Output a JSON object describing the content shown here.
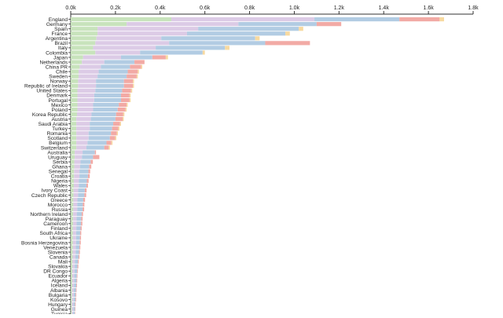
{
  "chart_data": {
    "type": "bar",
    "stacked": true,
    "orientation": "horizontal",
    "xlim": [
      0,
      1800
    ],
    "xticks": [
      0,
      200,
      400,
      600,
      800,
      1000,
      1200,
      1400,
      1600,
      1800
    ],
    "xtick_labels": [
      "0.0k",
      "0.2k",
      "0.4k",
      "0.6k",
      "0.8k",
      "1.0k",
      "1.2k",
      "1.4k",
      "1.6k",
      "1.8k"
    ],
    "grid": false,
    "legend": "none",
    "segment_colors": [
      "#c8e3bc",
      "#dccbe6",
      "#b2cce3",
      "#f2aaa5",
      "#f7d9a0"
    ],
    "categories": [
      "England",
      "Germany",
      "Spain",
      "France",
      "Argentina",
      "Brazil",
      "Italy",
      "Colombia",
      "Japan",
      "Netherlands",
      "China PR",
      "Chile",
      "Sweden",
      "Norway",
      "Republic of Ireland",
      "United States",
      "Denmark",
      "Portugal",
      "Mexico",
      "Poland",
      "Korea Republic",
      "Austria",
      "Saudi Arabia",
      "Turkey",
      "Romania",
      "Scotland",
      "Belgium",
      "Switzerland",
      "Australia",
      "Uruguay",
      "Serbia",
      "Ghana",
      "Senegal",
      "Croatia",
      "Nigeria",
      "Wales",
      "Ivory Coast",
      "Czech Republic",
      "Greece",
      "Morocco",
      "Russia",
      "Northern Ireland",
      "Paraguay",
      "Cameroon",
      "Finland",
      "South Africa",
      "Ukraine",
      "Bosnia Herzegovina",
      "Venezuela",
      "Slovenia",
      "Canada",
      "Mali",
      "Slovakia",
      "DR Congo",
      "Ecuador",
      "Algeria",
      "Iceland",
      "Albania",
      "Bulgaria",
      "Kosovo",
      "Hungary",
      "Guinea",
      "Tunisia"
    ],
    "series": [
      {
        "values": [
          450,
          250,
          120,
          120,
          115,
          110,
          100,
          110,
          55,
          50,
          40,
          35,
          35,
          33,
          33,
          30,
          30,
          30,
          30,
          30,
          28,
          25,
          25,
          25,
          25,
          25,
          25,
          25,
          18,
          18,
          16,
          16,
          15,
          15,
          14,
          14,
          13,
          13,
          12,
          12,
          12,
          11,
          11,
          11,
          10,
          10,
          10,
          10,
          10,
          9,
          9,
          8,
          8,
          7,
          7,
          7,
          7,
          6,
          6,
          6,
          5,
          5,
          5
        ]
      },
      {
        "values": [
          640,
          500,
          450,
          400,
          290,
          330,
          280,
          200,
          170,
          100,
          95,
          90,
          85,
          80,
          80,
          80,
          75,
          75,
          70,
          70,
          65,
          65,
          60,
          60,
          55,
          55,
          50,
          45,
          35,
          32,
          28,
          26,
          24,
          24,
          22,
          22,
          20,
          20,
          18,
          17,
          17,
          16,
          15,
          15,
          15,
          14,
          14,
          14,
          13,
          13,
          12,
          11,
          10,
          10,
          9,
          9,
          8,
          8,
          8,
          7,
          7,
          7,
          6
        ]
      },
      {
        "values": [
          380,
          350,
          450,
          440,
          420,
          430,
          310,
          280,
          140,
          135,
          130,
          130,
          130,
          125,
          125,
          120,
          120,
          120,
          115,
          110,
          110,
          110,
          105,
          100,
          100,
          95,
          85,
          80,
          55,
          50,
          45,
          40,
          40,
          38,
          36,
          34,
          30,
          28,
          26,
          25,
          24,
          22,
          21,
          20,
          19,
          18,
          17,
          16,
          16,
          15,
          14,
          13,
          12,
          12,
          11,
          10,
          10,
          9,
          8,
          8,
          7,
          7,
          7
        ]
      },
      {
        "values": [
          180,
          110,
          0,
          0,
          0,
          200,
          0,
          0,
          60,
          45,
          50,
          45,
          45,
          40,
          40,
          40,
          38,
          38,
          35,
          35,
          32,
          32,
          30,
          28,
          26,
          24,
          22,
          20,
          5,
          28,
          10,
          10,
          8,
          8,
          8,
          7,
          8,
          8,
          8,
          7,
          7,
          6,
          6,
          6,
          5,
          5,
          5,
          5,
          4,
          4,
          4,
          4,
          4,
          3,
          3,
          3,
          3,
          3,
          3,
          3,
          3,
          2,
          2
        ]
      },
      {
        "values": [
          20,
          0,
          20,
          20,
          20,
          0,
          20,
          10,
          10,
          0,
          5,
          5,
          5,
          5,
          5,
          5,
          5,
          5,
          5,
          5,
          5,
          5,
          5,
          5,
          5,
          5,
          5,
          5,
          0,
          0,
          0,
          0,
          0,
          0,
          0,
          0,
          0,
          0,
          0,
          0,
          0,
          0,
          0,
          0,
          0,
          0,
          0,
          0,
          0,
          0,
          0,
          0,
          0,
          0,
          0,
          0,
          0,
          0,
          0,
          0,
          0,
          0,
          0
        ]
      }
    ]
  }
}
